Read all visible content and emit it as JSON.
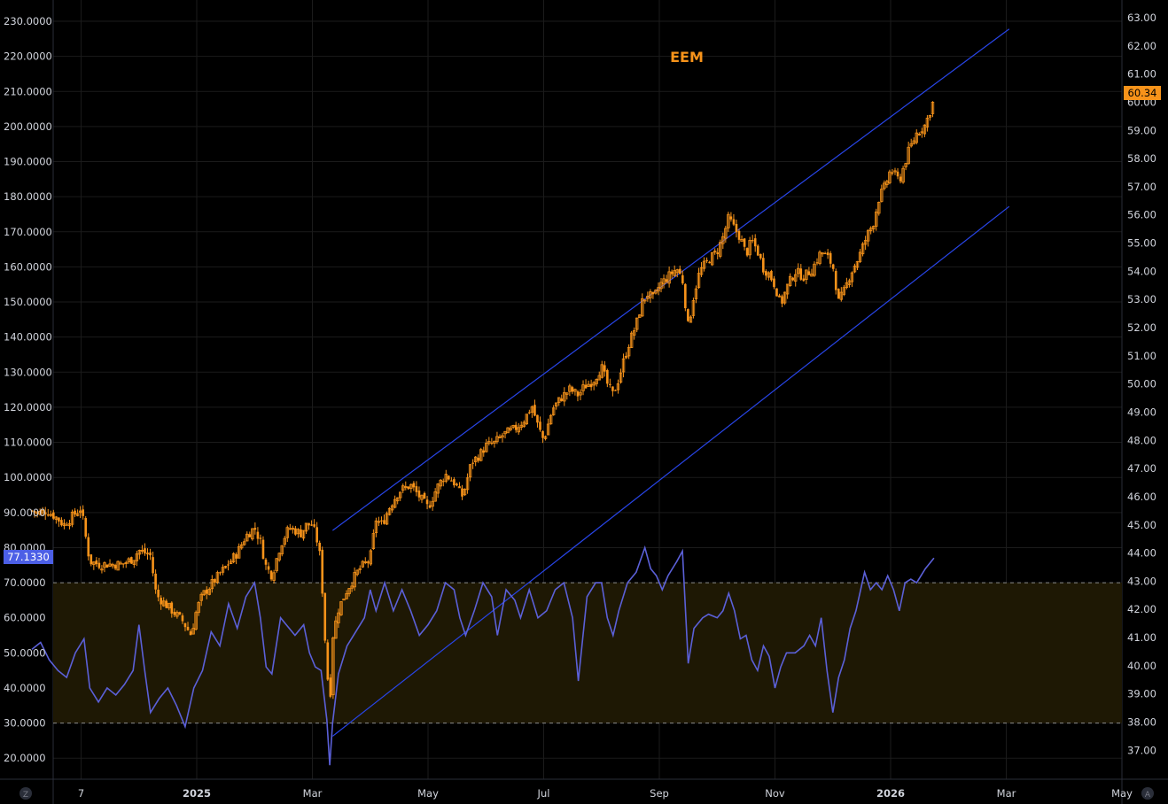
{
  "colors": {
    "background": "#000000",
    "grid": "#1b1b1b",
    "candle": "#f7931a",
    "rsi": "#5b60d8",
    "channel": "#2845e8",
    "rsi_band_fill": "#1e1804",
    "price_badge": "#f7931a",
    "rsi_badge": "#4c5fe6",
    "title": "#f7931a",
    "axis_text": "#d1d4dc",
    "dashed": "#8a8a8a"
  },
  "chart_data": {
    "type": "candlestick",
    "title": "EEM",
    "left_axis": {
      "ticks": [
        "230.0000",
        "220.0000",
        "210.0000",
        "200.0000",
        "190.0000",
        "180.0000",
        "170.0000",
        "160.0000",
        "150.0000",
        "140.0000",
        "130.0000",
        "120.0000",
        "110.0000",
        "100.0000",
        "90.0000",
        "80.0000",
        "70.0000",
        "60.0000",
        "50.0000",
        "40.0000",
        "30.0000",
        "20.0000"
      ],
      "range": [
        16.6,
        233.2
      ]
    },
    "right_axis": {
      "ticks": [
        "63.00",
        "62.00",
        "61.00",
        "60.00",
        "59.00",
        "58.00",
        "57.00",
        "56.00",
        "55.00",
        "54.00",
        "53.00",
        "52.00",
        "51.00",
        "50.00",
        "49.00",
        "48.00",
        "47.00",
        "46.00",
        "45.00",
        "44.00",
        "43.00",
        "42.00",
        "41.00",
        "40.00",
        "39.00",
        "38.00",
        "37.00"
      ],
      "range": [
        36.6,
        63.1
      ]
    },
    "x_axis": {
      "ticks": [
        {
          "label": "7",
          "bold": false,
          "month": 0
        },
        {
          "label": "2025",
          "bold": true,
          "month": 2
        },
        {
          "label": "Mar",
          "bold": false,
          "month": 4
        },
        {
          "label": "May",
          "bold": false,
          "month": 6
        },
        {
          "label": "Jul",
          "bold": false,
          "month": 8
        },
        {
          "label": "Sep",
          "bold": false,
          "month": 10
        },
        {
          "label": "Nov",
          "bold": false,
          "month": 12
        },
        {
          "label": "2026",
          "bold": true,
          "month": 14
        },
        {
          "label": "Mar",
          "bold": false,
          "month": 16
        },
        {
          "label": "May",
          "bold": false,
          "month": 18
        }
      ]
    },
    "last_price": "60.34",
    "last_rsi": "77.1330",
    "rsi_band": [
      30,
      70
    ],
    "price_series": [
      [
        -0.85,
        45.5
      ],
      [
        -0.75,
        45.4
      ],
      [
        -0.6,
        45.5
      ],
      [
        -0.45,
        45.3
      ],
      [
        -0.3,
        45.0
      ],
      [
        -0.15,
        45.3
      ],
      [
        0.0,
        45.6
      ],
      [
        0.1,
        44.3
      ],
      [
        0.15,
        43.7
      ],
      [
        0.3,
        43.6
      ],
      [
        0.5,
        43.6
      ],
      [
        0.7,
        43.6
      ],
      [
        0.9,
        43.8
      ],
      [
        1.0,
        44.1
      ],
      [
        1.1,
        44.0
      ],
      [
        1.2,
        43.9
      ],
      [
        1.3,
        42.5
      ],
      [
        1.45,
        42.2
      ],
      [
        1.6,
        41.9
      ],
      [
        1.75,
        41.6
      ],
      [
        1.9,
        41.1
      ],
      [
        2.0,
        42.0
      ],
      [
        2.1,
        42.5
      ],
      [
        2.3,
        43.0
      ],
      [
        2.5,
        43.5
      ],
      [
        2.7,
        44.0
      ],
      [
        2.85,
        44.6
      ],
      [
        3.0,
        44.9
      ],
      [
        3.1,
        44.4
      ],
      [
        3.2,
        43.5
      ],
      [
        3.3,
        43.2
      ],
      [
        3.45,
        44.3
      ],
      [
        3.6,
        44.9
      ],
      [
        3.8,
        44.7
      ],
      [
        3.9,
        45.0
      ],
      [
        4.0,
        45.0
      ],
      [
        4.1,
        44.3
      ],
      [
        4.15,
        43.6
      ],
      [
        4.2,
        41.5
      ],
      [
        4.3,
        38.5
      ],
      [
        4.35,
        41.0
      ],
      [
        4.45,
        42.0
      ],
      [
        4.6,
        42.7
      ],
      [
        4.8,
        43.4
      ],
      [
        5.0,
        43.8
      ],
      [
        5.1,
        45.2
      ],
      [
        5.2,
        45.0
      ],
      [
        5.35,
        45.7
      ],
      [
        5.5,
        46.2
      ],
      [
        5.7,
        46.4
      ],
      [
        5.85,
        46.0
      ],
      [
        6.0,
        45.6
      ],
      [
        6.15,
        46.3
      ],
      [
        6.3,
        46.8
      ],
      [
        6.45,
        46.5
      ],
      [
        6.6,
        46.0
      ],
      [
        6.75,
        47.2
      ],
      [
        6.9,
        47.5
      ],
      [
        7.0,
        47.8
      ],
      [
        7.15,
        47.9
      ],
      [
        7.3,
        48.2
      ],
      [
        7.5,
        48.4
      ],
      [
        7.65,
        48.7
      ],
      [
        7.8,
        49.2
      ],
      [
        7.9,
        48.5
      ],
      [
        8.0,
        48.0
      ],
      [
        8.15,
        49.1
      ],
      [
        8.3,
        49.5
      ],
      [
        8.45,
        49.8
      ],
      [
        8.6,
        49.6
      ],
      [
        8.7,
        49.9
      ],
      [
        8.85,
        50.1
      ],
      [
        9.0,
        50.6
      ],
      [
        9.1,
        50.0
      ],
      [
        9.2,
        49.6
      ],
      [
        9.3,
        50.2
      ],
      [
        9.45,
        51.3
      ],
      [
        9.6,
        52.1
      ],
      [
        9.7,
        52.9
      ],
      [
        9.8,
        53.2
      ],
      [
        9.9,
        53.0
      ],
      [
        10.0,
        53.5
      ],
      [
        10.15,
        53.8
      ],
      [
        10.3,
        54.1
      ],
      [
        10.4,
        53.7
      ],
      [
        10.5,
        52.0
      ],
      [
        10.6,
        53.2
      ],
      [
        10.7,
        54.0
      ],
      [
        10.85,
        54.4
      ],
      [
        11.0,
        54.7
      ],
      [
        11.1,
        55.2
      ],
      [
        11.2,
        55.9
      ],
      [
        11.3,
        55.5
      ],
      [
        11.4,
        55.2
      ],
      [
        11.5,
        54.6
      ],
      [
        11.6,
        55.1
      ],
      [
        11.7,
        54.7
      ],
      [
        11.8,
        54.1
      ],
      [
        11.9,
        53.9
      ],
      [
        12.0,
        53.5
      ],
      [
        12.1,
        52.8
      ],
      [
        12.2,
        53.4
      ],
      [
        12.35,
        54.0
      ],
      [
        12.5,
        53.8
      ],
      [
        12.65,
        54.1
      ],
      [
        12.8,
        54.7
      ],
      [
        12.9,
        54.5
      ],
      [
        13.0,
        54.2
      ],
      [
        13.1,
        52.9
      ],
      [
        13.2,
        53.3
      ],
      [
        13.3,
        53.9
      ],
      [
        13.45,
        54.5
      ],
      [
        13.6,
        55.3
      ],
      [
        13.7,
        55.7
      ],
      [
        13.8,
        56.6
      ],
      [
        13.9,
        57.0
      ],
      [
        14.0,
        57.6
      ],
      [
        14.15,
        57.2
      ],
      [
        14.3,
        58.2
      ],
      [
        14.45,
        58.9
      ],
      [
        14.6,
        59.2
      ],
      [
        14.75,
        60.1
      ]
    ],
    "rsi_series": [
      [
        -0.85,
        51
      ],
      [
        -0.7,
        53
      ],
      [
        -0.55,
        48
      ],
      [
        -0.4,
        45
      ],
      [
        -0.25,
        43
      ],
      [
        -0.1,
        50
      ],
      [
        0.05,
        54
      ],
      [
        0.15,
        40
      ],
      [
        0.3,
        36
      ],
      [
        0.45,
        40
      ],
      [
        0.6,
        38
      ],
      [
        0.75,
        41
      ],
      [
        0.9,
        45
      ],
      [
        1.0,
        58
      ],
      [
        1.1,
        45
      ],
      [
        1.2,
        33
      ],
      [
        1.35,
        37
      ],
      [
        1.5,
        40
      ],
      [
        1.65,
        35
      ],
      [
        1.8,
        29
      ],
      [
        1.95,
        40
      ],
      [
        2.1,
        45
      ],
      [
        2.25,
        56
      ],
      [
        2.4,
        52
      ],
      [
        2.55,
        64
      ],
      [
        2.7,
        57
      ],
      [
        2.85,
        66
      ],
      [
        3.0,
        70
      ],
      [
        3.1,
        60
      ],
      [
        3.2,
        46
      ],
      [
        3.3,
        44
      ],
      [
        3.45,
        60
      ],
      [
        3.55,
        58
      ],
      [
        3.7,
        55
      ],
      [
        3.85,
        58
      ],
      [
        3.95,
        50
      ],
      [
        4.05,
        46
      ],
      [
        4.15,
        45
      ],
      [
        4.25,
        31
      ],
      [
        4.3,
        18
      ],
      [
        4.35,
        30
      ],
      [
        4.45,
        44
      ],
      [
        4.6,
        52
      ],
      [
        4.75,
        56
      ],
      [
        4.9,
        60
      ],
      [
        5.0,
        68
      ],
      [
        5.1,
        62
      ],
      [
        5.25,
        70
      ],
      [
        5.4,
        62
      ],
      [
        5.55,
        68
      ],
      [
        5.7,
        62
      ],
      [
        5.85,
        55
      ],
      [
        6.0,
        58
      ],
      [
        6.15,
        62
      ],
      [
        6.3,
        70
      ],
      [
        6.45,
        68
      ],
      [
        6.55,
        60
      ],
      [
        6.65,
        55
      ],
      [
        6.8,
        62
      ],
      [
        6.95,
        70
      ],
      [
        7.1,
        66
      ],
      [
        7.2,
        55
      ],
      [
        7.35,
        68
      ],
      [
        7.5,
        65
      ],
      [
        7.6,
        60
      ],
      [
        7.75,
        68
      ],
      [
        7.9,
        60
      ],
      [
        8.05,
        62
      ],
      [
        8.2,
        68
      ],
      [
        8.35,
        70
      ],
      [
        8.5,
        60
      ],
      [
        8.6,
        42
      ],
      [
        8.75,
        66
      ],
      [
        8.9,
        70
      ],
      [
        9.0,
        70
      ],
      [
        9.1,
        60
      ],
      [
        9.2,
        55
      ],
      [
        9.3,
        62
      ],
      [
        9.45,
        70
      ],
      [
        9.6,
        73
      ],
      [
        9.75,
        80
      ],
      [
        9.85,
        74
      ],
      [
        9.95,
        72
      ],
      [
        10.05,
        68
      ],
      [
        10.15,
        72
      ],
      [
        10.3,
        76
      ],
      [
        10.4,
        79
      ],
      [
        10.5,
        47
      ],
      [
        10.6,
        57
      ],
      [
        10.75,
        60
      ],
      [
        10.85,
        61
      ],
      [
        11.0,
        60
      ],
      [
        11.1,
        62
      ],
      [
        11.2,
        67
      ],
      [
        11.3,
        62
      ],
      [
        11.4,
        54
      ],
      [
        11.5,
        55
      ],
      [
        11.6,
        48
      ],
      [
        11.7,
        45
      ],
      [
        11.8,
        52
      ],
      [
        11.9,
        49
      ],
      [
        12.0,
        40
      ],
      [
        12.1,
        46
      ],
      [
        12.2,
        50
      ],
      [
        12.35,
        50
      ],
      [
        12.5,
        52
      ],
      [
        12.6,
        55
      ],
      [
        12.7,
        52
      ],
      [
        12.8,
        60
      ],
      [
        12.9,
        45
      ],
      [
        13.0,
        33
      ],
      [
        13.1,
        43
      ],
      [
        13.2,
        48
      ],
      [
        13.3,
        57
      ],
      [
        13.4,
        62
      ],
      [
        13.55,
        73
      ],
      [
        13.65,
        68
      ],
      [
        13.75,
        70
      ],
      [
        13.85,
        68
      ],
      [
        13.95,
        72
      ],
      [
        14.05,
        68
      ],
      [
        14.15,
        62
      ],
      [
        14.25,
        70
      ],
      [
        14.35,
        71
      ],
      [
        14.45,
        70
      ],
      [
        14.6,
        74
      ],
      [
        14.75,
        77
      ]
    ],
    "channel": [
      {
        "name": "upper",
        "from": {
          "month": 4.35,
          "price": 44.8
        },
        "to": {
          "month": 16.05,
          "price": 62.6
        }
      },
      {
        "name": "lower",
        "from": {
          "month": 4.35,
          "price": 37.5
        },
        "to": {
          "month": 16.05,
          "price": 56.3
        }
      }
    ]
  }
}
